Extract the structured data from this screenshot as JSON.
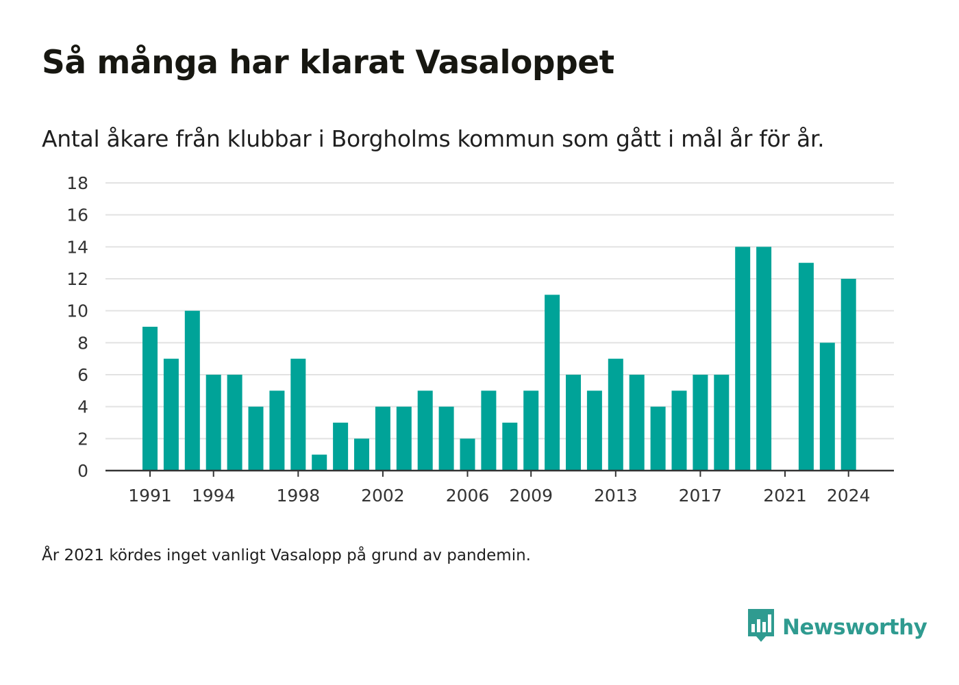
{
  "title": "Så många har klarat Vasaloppet",
  "subtitle": "Antal åkare från klubbar i Borgholms kommun som gått i mål år för år.",
  "note": "År 2021 kördes inget vanligt Vasalopp på grund av pandemin.",
  "brand": {
    "name": "Newsworthy",
    "icon": "newsworthy-chart-logo-icon"
  },
  "colors": {
    "bar": "#00A398",
    "grid": "#e2e2e2",
    "axis": "#333333",
    "brand": "#2f9b90"
  },
  "chart_data": {
    "type": "bar",
    "categories": [
      1991,
      1992,
      1993,
      1994,
      1995,
      1996,
      1997,
      1998,
      1999,
      2000,
      2001,
      2002,
      2003,
      2004,
      2005,
      2006,
      2007,
      2008,
      2009,
      2010,
      2011,
      2012,
      2013,
      2014,
      2015,
      2016,
      2017,
      2018,
      2019,
      2020,
      2021,
      2022,
      2023,
      2024
    ],
    "values": [
      9,
      7,
      10,
      6,
      6,
      4,
      5,
      7,
      1,
      3,
      2,
      4,
      4,
      5,
      4,
      2,
      5,
      3,
      5,
      11,
      6,
      5,
      7,
      6,
      4,
      5,
      6,
      6,
      14,
      14,
      null,
      13,
      8,
      12
    ],
    "ylim": [
      0,
      18
    ],
    "yticks": [
      0,
      2,
      4,
      6,
      8,
      10,
      12,
      14,
      16,
      18
    ],
    "xticks": [
      1991,
      1994,
      1998,
      2002,
      2006,
      2009,
      2013,
      2017,
      2021,
      2024
    ],
    "grid": true,
    "legend": "none"
  }
}
